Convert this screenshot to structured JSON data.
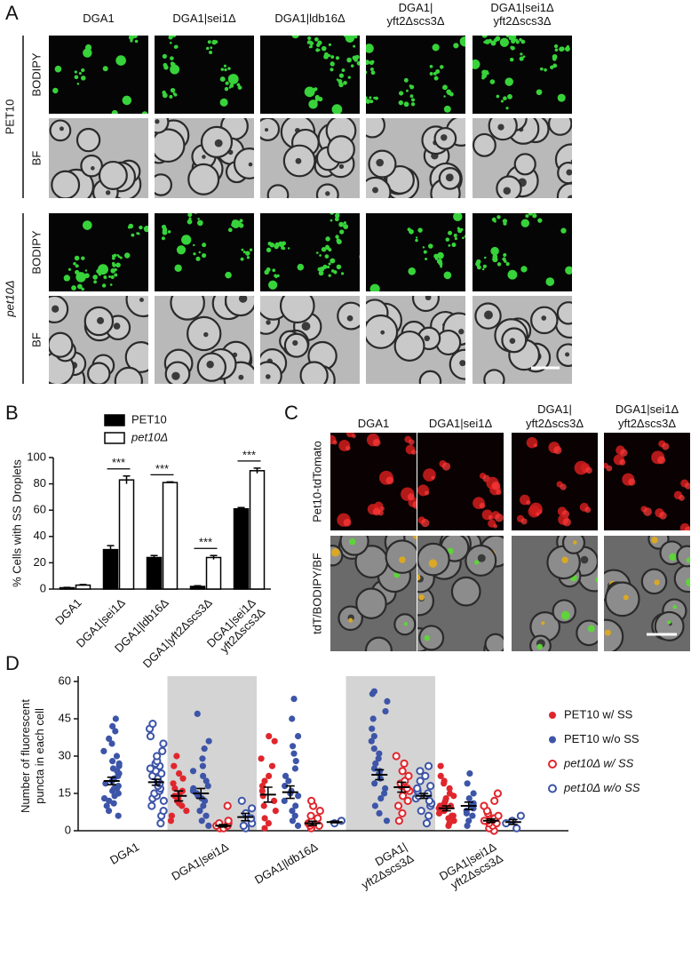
{
  "panel_a": {
    "label": "A",
    "columns": [
      [
        "DGA1"
      ],
      [
        "DGA1|sei1Δ"
      ],
      [
        "DGA1|ldb16Δ"
      ],
      [
        "DGA1|",
        "yft2Δscs3Δ"
      ],
      [
        "DGA1|sei1Δ",
        "yft2Δscs3Δ"
      ]
    ],
    "groups": [
      {
        "name": "PET10",
        "rows": [
          "BODIPY",
          "BF"
        ]
      },
      {
        "name": "pet10Δ",
        "rows": [
          "BODIPY",
          "BF"
        ]
      }
    ]
  },
  "panel_c": {
    "label": "C",
    "columns": [
      [
        "DGA1"
      ],
      [
        "DGA1|sei1Δ"
      ],
      [
        "DGA1|",
        "yft2Δscs3Δ"
      ],
      [
        "DGA1|sei1Δ",
        "yft2Δscs3Δ"
      ]
    ],
    "rows": [
      "Pet10-tdTomato",
      "tdT/BODIPY/BF"
    ]
  },
  "chart_data": [
    {
      "panel": "B",
      "type": "bar",
      "ylabel": "% Cells with SS Droplets",
      "categories": [
        [
          "DGA1"
        ],
        [
          "DGA1|sei1Δ"
        ],
        [
          "DGA1|ldb16Δ"
        ],
        [
          "DGA1|yft2Δscs3Δ"
        ],
        [
          "DGA1|sei1Δ",
          "yft2Δscs3Δ"
        ]
      ],
      "series": [
        {
          "name": "PET10",
          "color": "#000000",
          "values": [
            1,
            30,
            24,
            2,
            61
          ],
          "errors": [
            0.3,
            3,
            1.5,
            0.5,
            1
          ]
        },
        {
          "name": "pet10Δ",
          "color": "#ffffff",
          "values": [
            3,
            83,
            81,
            24,
            90
          ],
          "errors": [
            0.5,
            3,
            0.5,
            1.5,
            2
          ]
        }
      ],
      "annotations": [
        "***",
        "***",
        "***",
        "***"
      ],
      "ylim": [
        0,
        100
      ],
      "yticks": [
        0,
        20,
        40,
        60,
        80,
        100
      ],
      "legend": "top-left"
    },
    {
      "panel": "D",
      "type": "dot",
      "ylabel": [
        "Number of fluorescent",
        "puncta in each cell"
      ],
      "categories": [
        [
          "DGA1"
        ],
        [
          "DGA1|sei1Δ"
        ],
        [
          "DGA1|ldb16Δ"
        ],
        [
          "DGA1|",
          "yft2Δscs3Δ"
        ],
        [
          "DGA1|sei1Δ",
          "yft2Δscs3Δ"
        ]
      ],
      "series": [
        {
          "name": "PET10 w/ SS",
          "color": "#e0262d",
          "marker": "filled",
          "values": [
            null,
            14,
            14.5,
            null,
            9
          ],
          "errors": [
            null,
            2,
            3,
            null,
            1
          ],
          "points": [
            [],
            [
              4,
              6,
              8,
              10,
              11,
              12,
              13,
              14,
              15,
              16,
              17,
              19,
              21,
              23,
              26,
              30
            ],
            [
              1,
              3,
              5,
              8,
              10,
              12,
              14,
              16,
              18,
              20,
              22,
              26,
              29,
              36,
              38
            ],
            [],
            [
              2,
              3,
              4,
              5,
              6,
              6,
              7,
              8,
              8,
              9,
              9,
              10,
              10,
              11,
              12,
              13,
              14,
              15,
              17,
              19,
              20,
              22,
              26
            ]
          ]
        },
        {
          "name": "PET10 w/o SS",
          "color": "#3d55a8",
          "marker": "filled",
          "values": [
            20,
            15,
            15.5,
            22.5,
            10
          ],
          "errors": [
            1.5,
            2,
            2.5,
            2,
            1.5
          ],
          "points": [
            [
              6,
              8,
              10,
              11,
              12,
              13,
              14,
              15,
              16,
              17,
              17,
              18,
              19,
              20,
              21,
              22,
              23,
              24,
              25,
              26,
              27,
              28,
              30,
              32,
              35,
              37,
              40,
              42,
              45
            ],
            [
              2,
              4,
              6,
              8,
              10,
              12,
              13,
              14,
              15,
              16,
              17,
              18,
              20,
              22,
              24,
              26,
              29,
              33,
              36,
              47
            ],
            [
              2,
              4,
              6,
              8,
              10,
              12,
              14,
              15,
              16,
              18,
              20,
              22,
              25,
              28,
              31,
              34,
              38,
              45,
              53
            ],
            [
              4,
              7,
              10,
              13,
              15,
              17,
              19,
              21,
              23,
              24,
              25,
              27,
              29,
              31,
              33,
              36,
              38,
              41,
              45,
              48,
              52,
              55,
              56
            ],
            [
              2,
              4,
              6,
              7,
              8,
              9,
              10,
              11,
              13,
              15,
              19,
              23
            ]
          ]
        },
        {
          "name": "pet10Δ w/ SS",
          "color": "#e0262d",
          "marker": "open",
          "values": [
            null,
            2,
            3,
            17.5,
            4
          ],
          "errors": [
            null,
            0.5,
            0.8,
            2,
            0.7
          ],
          "points": [
            [],
            [
              1,
              1,
              2,
              2,
              3,
              3,
              4,
              10
            ],
            [
              1,
              2,
              2,
              3,
              3,
              4,
              5,
              6,
              8,
              10,
              12
            ],
            [
              4,
              7,
              10,
              12,
              14,
              16,
              17,
              18,
              19,
              20,
              22,
              24,
              27,
              30
            ],
            [
              0,
              1,
              2,
              3,
              3,
              4,
              4,
              5,
              5,
              6,
              7,
              8,
              10,
              12,
              15
            ]
          ]
        },
        {
          "name": "pet10Δ w/o SS",
          "color": "#3d55a8",
          "marker": "open",
          "values": [
            19.5,
            5.5,
            3.5,
            14,
            3.5
          ],
          "errors": [
            1.2,
            1.5,
            0.3,
            1,
            1
          ],
          "points": [
            [
              3,
              6,
              8,
              10,
              12,
              13,
              14,
              15,
              16,
              17,
              18,
              19,
              20,
              21,
              22,
              23,
              24,
              25,
              26,
              27,
              28,
              30,
              32,
              35,
              38,
              41,
              43
            ],
            [
              1,
              2,
              3,
              5,
              7,
              9,
              12
            ],
            [
              3,
              4
            ],
            [
              3,
              6,
              8,
              10,
              11,
              12,
              13,
              14,
              15,
              16,
              17,
              18,
              20,
              22,
              24,
              26
            ],
            [
              1,
              3,
              4,
              6
            ]
          ]
        }
      ],
      "ylim": [
        0,
        60
      ],
      "yticks": [
        0,
        15,
        30,
        45,
        60
      ],
      "legend": "top-right"
    }
  ]
}
